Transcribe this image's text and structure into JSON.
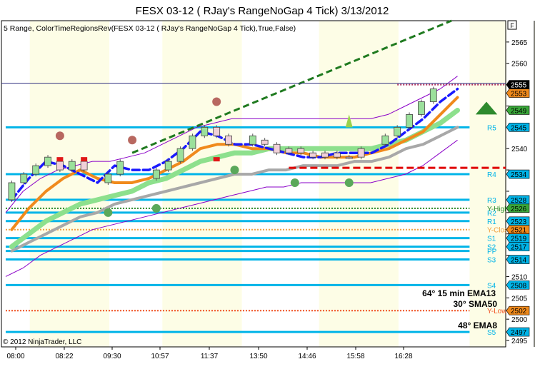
{
  "title": "FESX 03-12 ( RJay's RangeNoGap  4 Tick)  3/13/2012",
  "indicator_label": "5 Range, ColorTimeRegionsRev(FESX 03-12 ( RJay's RangeNoGap  4 Tick),True,False)",
  "copyright": "© 2012 NinjaTrader, LLC",
  "corner_glyph": "F",
  "annotations": [
    "64° 15 min EMA13",
    "30° SMA50",
    "48° EMA8"
  ],
  "colors": {
    "level_line": "#00b4e8",
    "ema_fast": "#1a1aff",
    "ema_orange": "#f08a1c",
    "ema_green": "#8de08d",
    "sma_gray": "#a8a8a8",
    "envelope": "#8a00c8",
    "trend": "#1f7a1f",
    "red_dashed": "#e00000",
    "shade": "#fdfde6",
    "annotation": "#2a8a1a"
  },
  "chart_data": {
    "type": "line",
    "x_ticks": [
      "08:00",
      "08:22",
      "09:30",
      "10:57",
      "11:37",
      "13:50",
      "14:46",
      "15:58",
      "16:28"
    ],
    "ylim": [
      2493.5,
      2570
    ],
    "y_ticks": [
      2495,
      2500,
      2505,
      2510,
      2515,
      2520,
      2525,
      2530,
      2535,
      2540,
      2545,
      2550,
      2555,
      2560,
      2565
    ],
    "y_ticks_hidden": [
      2515,
      2520,
      2525,
      2530,
      2535,
      2545,
      2550,
      2555
    ],
    "price_markers": [
      {
        "label": "2555",
        "value": 2555,
        "bg": "#000000",
        "fg": "#ffffff"
      },
      {
        "label": "2553",
        "value": 2553,
        "bg": "#f08a1c",
        "fg": "#000000"
      },
      {
        "label": "2549",
        "value": 2549,
        "bg": "#3aa83a",
        "fg": "#000000"
      },
      {
        "label": "2545",
        "value": 2545,
        "bg": "#00b4e8",
        "fg": "#000000"
      },
      {
        "label": "2534",
        "value": 2534,
        "bg": "#00b4e8",
        "fg": "#000000"
      },
      {
        "label": "2528",
        "value": 2528,
        "bg": "#00b4e8",
        "fg": "#000000"
      },
      {
        "label": "2526",
        "value": 2526,
        "bg": "#3aa83a",
        "fg": "#000000"
      },
      {
        "label": "2523",
        "value": 2523,
        "bg": "#00b4e8",
        "fg": "#000000"
      },
      {
        "label": "2521",
        "value": 2521,
        "bg": "#f08a1c",
        "fg": "#000000"
      },
      {
        "label": "2519",
        "value": 2519,
        "bg": "#00b4e8",
        "fg": "#000000"
      },
      {
        "label": "2517",
        "value": 2517,
        "bg": "#00b4e8",
        "fg": "#000000"
      },
      {
        "label": "2514",
        "value": 2514,
        "bg": "#00b4e8",
        "fg": "#000000"
      },
      {
        "label": "2508",
        "value": 2508,
        "bg": "#00b4e8",
        "fg": "#000000"
      },
      {
        "label": "2502",
        "value": 2502,
        "bg": "#f08a1c",
        "fg": "#000000"
      },
      {
        "label": "2497",
        "value": 2497,
        "bg": "#00b4e8",
        "fg": "#000000"
      }
    ],
    "levels": [
      {
        "label": "R5",
        "value": 2545,
        "color": "#00b4e8"
      },
      {
        "label": "R4",
        "value": 2534,
        "color": "#00b4e8"
      },
      {
        "label": "R3",
        "value": 2528,
        "color": "#00b4e8"
      },
      {
        "label": "Y-High",
        "value": 2526,
        "color": "#2a8a2a",
        "style": "dotted"
      },
      {
        "label": "R2",
        "value": 2525,
        "color": "#00b4e8"
      },
      {
        "label": "R1",
        "value": 2523,
        "color": "#00b4e8"
      },
      {
        "label": "Y-Close",
        "value": 2521,
        "color": "#f0a040",
        "style": "dotted"
      },
      {
        "label": "S1",
        "value": 2519,
        "color": "#00b4e8"
      },
      {
        "label": "S2",
        "value": 2517,
        "color": "#00b4e8"
      },
      {
        "label": "PP",
        "value": 2516,
        "color": "#00b4e8"
      },
      {
        "label": "S3",
        "value": 2514,
        "color": "#00b4e8"
      },
      {
        "label": "S4",
        "value": 2508,
        "color": "#00b4e8"
      },
      {
        "label": "Y-Low",
        "value": 2502,
        "color": "#f05020",
        "style": "dotted"
      },
      {
        "label": "S5",
        "value": 2497,
        "color": "#00b4e8"
      }
    ],
    "candles": [
      {
        "x": 0.5,
        "open": 2528,
        "close": 2532,
        "bull": true
      },
      {
        "x": 1.5,
        "open": 2532,
        "close": 2534,
        "bull": true
      },
      {
        "x": 2.5,
        "open": 2534,
        "close": 2536,
        "bull": true
      },
      {
        "x": 3.5,
        "open": 2536,
        "close": 2538,
        "bull": true
      },
      {
        "x": 4.5,
        "open": 2537,
        "close": 2535,
        "bull": false
      },
      {
        "x": 5.5,
        "open": 2535,
        "close": 2537,
        "bull": true
      },
      {
        "x": 6.5,
        "open": 2537,
        "close": 2535,
        "bull": false
      },
      {
        "x": 8.5,
        "open": 2532,
        "close": 2534,
        "bull": true
      },
      {
        "x": 9.5,
        "open": 2534,
        "close": 2537,
        "bull": true
      },
      {
        "x": 12.5,
        "open": 2533,
        "close": 2535,
        "bull": true
      },
      {
        "x": 13.5,
        "open": 2535,
        "close": 2537,
        "bull": true
      },
      {
        "x": 14.5,
        "open": 2537,
        "close": 2540,
        "bull": true
      },
      {
        "x": 15.5,
        "open": 2540,
        "close": 2543,
        "bull": true
      },
      {
        "x": 16.5,
        "open": 2543,
        "close": 2545,
        "bull": true
      },
      {
        "x": 17.5,
        "open": 2545,
        "close": 2543,
        "bull": false
      },
      {
        "x": 18.5,
        "open": 2543,
        "close": 2541,
        "bull": false
      },
      {
        "x": 20.5,
        "open": 2541,
        "close": 2543,
        "bull": true
      },
      {
        "x": 21.5,
        "open": 2542,
        "close": 2541,
        "bull": false
      },
      {
        "x": 22.5,
        "open": 2541,
        "close": 2539,
        "bull": false
      },
      {
        "x": 23.5,
        "open": 2539,
        "close": 2540,
        "bull": false
      },
      {
        "x": 24.5,
        "open": 2540,
        "close": 2539,
        "bull": false
      },
      {
        "x": 25.5,
        "open": 2539,
        "close": 2538,
        "bull": false
      },
      {
        "x": 26.5,
        "open": 2538,
        "close": 2539,
        "bull": false
      },
      {
        "x": 27.5,
        "open": 2539,
        "close": 2538,
        "bull": false
      },
      {
        "x": 28.5,
        "open": 2538,
        "close": 2538,
        "bull": false
      },
      {
        "x": 29.5,
        "open": 2538,
        "close": 2540,
        "bull": false
      },
      {
        "x": 31.5,
        "open": 2541,
        "close": 2543,
        "bull": true
      },
      {
        "x": 32.5,
        "open": 2543,
        "close": 2545,
        "bull": true
      },
      {
        "x": 33.5,
        "open": 2545,
        "close": 2548,
        "bull": true
      },
      {
        "x": 34.5,
        "open": 2548,
        "close": 2551,
        "bull": true
      },
      {
        "x": 35.5,
        "open": 2551,
        "close": 2554,
        "bull": true
      }
    ],
    "series": [
      {
        "key": "ema_fast",
        "color": "#1a1aff",
        "dashed": true,
        "values": [
          2528,
          2533,
          2537,
          2536,
          2534,
          2532,
          2536,
          2535,
          2535,
          2537,
          2540,
          2544,
          2543,
          2541,
          2541,
          2540,
          2539,
          2538,
          2538,
          2539,
          2539,
          2539,
          2541,
          2544,
          2547,
          2551,
          2554
        ]
      },
      {
        "key": "ema_orange",
        "color": "#f08a1c",
        "values": [
          2521,
          2526,
          2530,
          2533,
          2535,
          2533,
          2532,
          2532,
          2533,
          2535,
          2537,
          2540,
          2541,
          2541,
          2540,
          2540,
          2539,
          2539,
          2538,
          2538,
          2538,
          2539,
          2540,
          2542,
          2544,
          2548,
          2552
        ]
      },
      {
        "key": "ema_green",
        "color": "#8de08d",
        "values": [
          2517,
          2520,
          2523,
          2525,
          2527,
          2528,
          2529,
          2530,
          2532,
          2533,
          2535,
          2537,
          2538,
          2539,
          2539,
          2540,
          2540,
          2540,
          2540,
          2540,
          2540,
          2540,
          2541,
          2542,
          2544,
          2546,
          2549
        ]
      },
      {
        "key": "sma_gray",
        "color": "#a8a8a8",
        "values": [
          2516,
          2518,
          2520,
          2522,
          2524,
          2525,
          2527,
          2528,
          2529,
          2530,
          2531,
          2532,
          2533,
          2534,
          2534,
          2535,
          2535,
          2536,
          2536,
          2536,
          2537,
          2537,
          2538,
          2540,
          2541,
          2543,
          2545
        ]
      }
    ],
    "envelope_upper": [
      2525,
      2530,
      2533,
      2535,
      2536,
      2537,
      2537,
      2538,
      2539,
      2541,
      2543,
      2545,
      2546,
      2547,
      2547,
      2547,
      2547,
      2547,
      2547,
      2547,
      2547,
      2547,
      2548,
      2550,
      2552,
      2554,
      2557
    ],
    "envelope_lower": [
      2510,
      2512,
      2515,
      2517,
      2519,
      2521,
      2522,
      2523,
      2524,
      2525,
      2526,
      2527,
      2528,
      2529,
      2530,
      2531,
      2531,
      2532,
      2532,
      2532,
      2532,
      2532,
      2533,
      2534,
      2536,
      2539,
      2542
    ],
    "dots_brown": [
      {
        "x": 4.5,
        "value": 2543
      },
      {
        "x": 10.5,
        "value": 2542
      },
      {
        "x": 17.5,
        "value": 2551
      }
    ],
    "dots_green": [
      {
        "x": 8.5,
        "value": 2525
      },
      {
        "x": 12.5,
        "value": 2526
      },
      {
        "x": 19,
        "value": 2535
      },
      {
        "x": 24,
        "value": 2532
      },
      {
        "x": 28.5,
        "value": 2532
      }
    ],
    "trendline": [
      {
        "x": 10.5,
        "value": 2539
      },
      {
        "x": 37,
        "value": 2570
      }
    ],
    "red_dashed": {
      "x0": 23.5,
      "x1": 44,
      "value": 2535.5
    },
    "dotted_price_line": {
      "x0": 32.5,
      "x1": 44,
      "value": 2555
    },
    "current_price": 2555
  }
}
